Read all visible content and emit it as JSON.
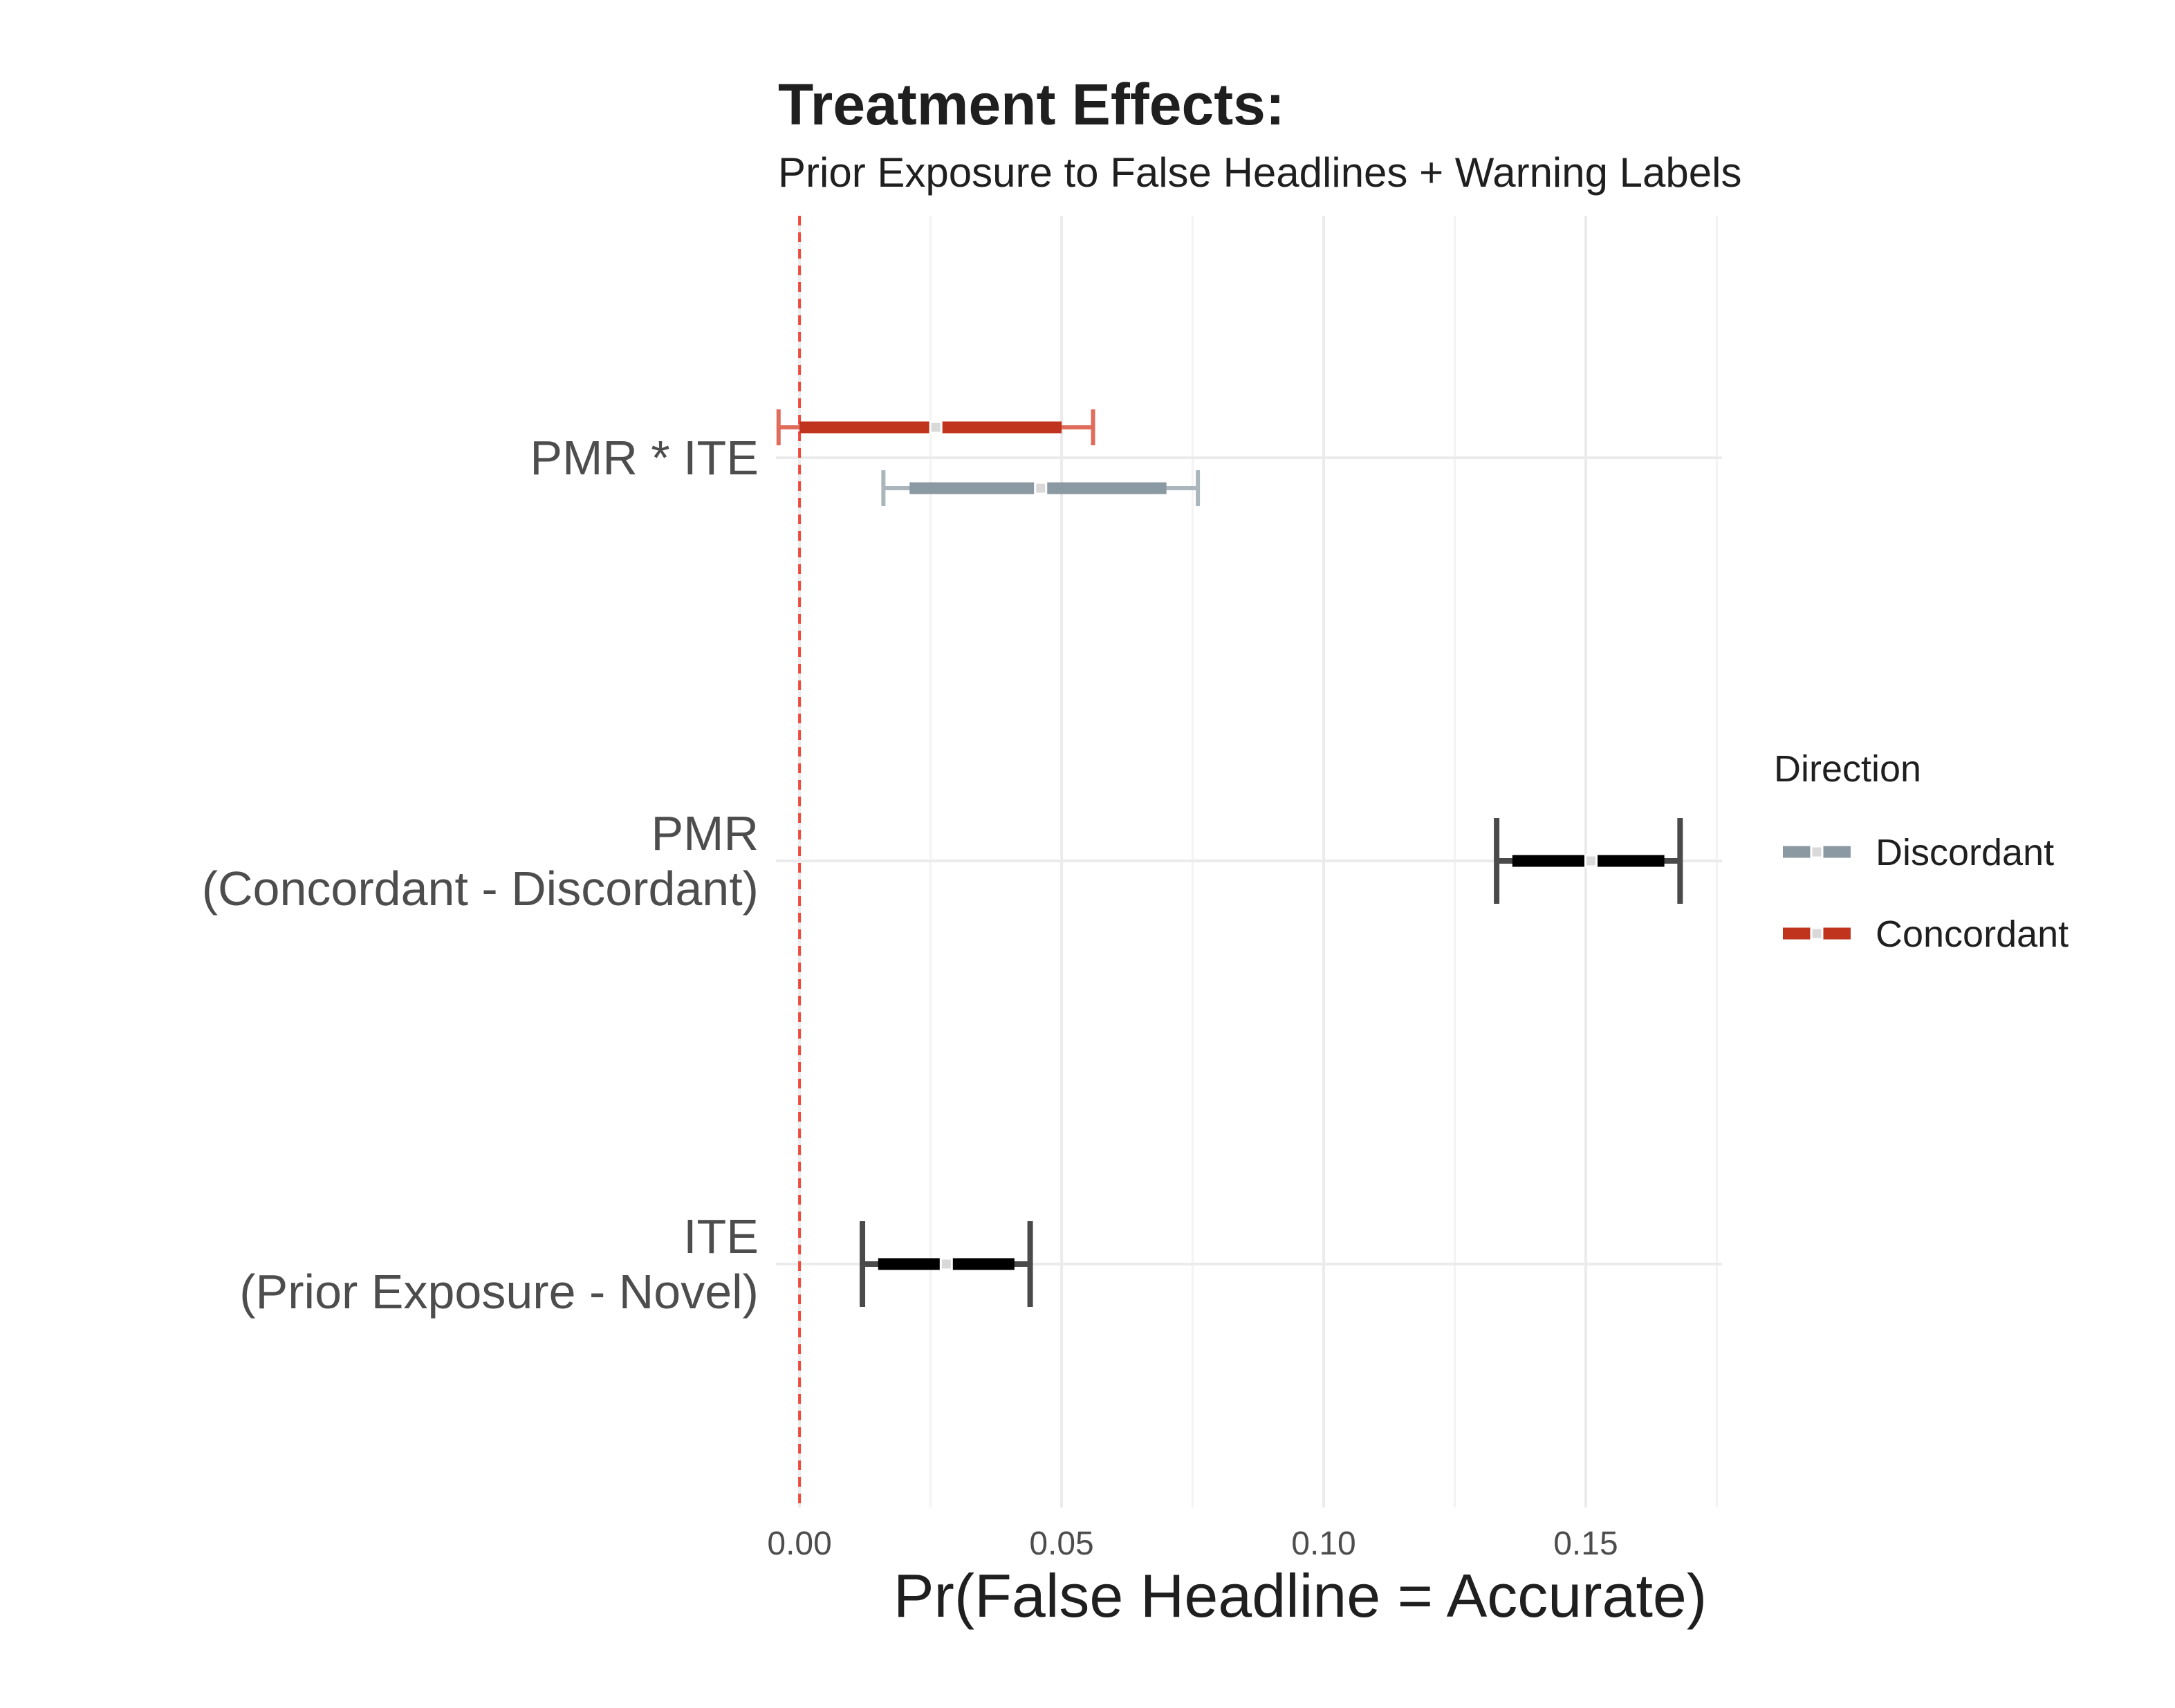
{
  "chart_data": {
    "type": "forest",
    "title": "Treatment Effects:",
    "subtitle": "Prior Exposure to False Headlines + Warning Labels",
    "xlabel": "Pr(False Headline = Accurate)",
    "xlim": [
      -0.0045,
      0.176
    ],
    "xticks": [
      0.0,
      0.05,
      0.1,
      0.15
    ],
    "xtick_labels": [
      "0.00",
      "0.05",
      "0.10",
      "0.15"
    ],
    "reference_line": {
      "x": 0.0,
      "color": "#f04a3c",
      "style": "dashed"
    },
    "grid": true,
    "categories": [
      {
        "id": "pmr_ite",
        "lines": [
          "PMR * ITE"
        ]
      },
      {
        "id": "pmr",
        "lines": [
          "PMR ",
          "(Concordant - Discordant)"
        ]
      },
      {
        "id": "ite",
        "lines": [
          "ITE ",
          "(Prior Exposure - Novel)"
        ]
      }
    ],
    "estimates": [
      {
        "category": "pmr_ite",
        "series": "Concordant",
        "estimate": 0.026,
        "ci_inner": [
          0.0,
          0.05
        ],
        "ci_outer": [
          -0.004,
          0.056
        ],
        "color": "#c0341d",
        "whisker_color": "#e06c5c"
      },
      {
        "category": "pmr_ite",
        "series": "Discordant",
        "estimate": 0.046,
        "ci_inner": [
          0.021,
          0.07
        ],
        "ci_outer": [
          0.016,
          0.076
        ],
        "color": "#8b9aa2",
        "whisker_color": "#aab6bc"
      },
      {
        "category": "pmr",
        "series": "",
        "estimate": 0.151,
        "ci_inner": [
          0.136,
          0.165
        ],
        "ci_outer": [
          0.133,
          0.168
        ],
        "color": "#000000",
        "whisker_color": "#4a4a4a"
      },
      {
        "category": "ite",
        "series": "",
        "estimate": 0.028,
        "ci_inner": [
          0.015,
          0.041
        ],
        "ci_outer": [
          0.012,
          0.044
        ],
        "color": "#000000",
        "whisker_color": "#4a4a4a"
      }
    ],
    "legend": {
      "title": "Direction",
      "position": "right",
      "items": [
        {
          "label": "Discordant",
          "color": "#8b9aa2"
        },
        {
          "label": "Concordant",
          "color": "#c0341d"
        }
      ]
    }
  }
}
